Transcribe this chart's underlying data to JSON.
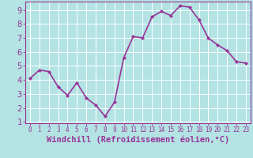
{
  "x": [
    0,
    1,
    2,
    3,
    4,
    5,
    6,
    7,
    8,
    9,
    10,
    11,
    12,
    13,
    14,
    15,
    16,
    17,
    18,
    19,
    20,
    21,
    22,
    23
  ],
  "y": [
    4.1,
    4.7,
    4.6,
    3.5,
    2.9,
    3.8,
    2.7,
    2.2,
    1.4,
    2.4,
    5.6,
    7.1,
    7.0,
    8.5,
    8.9,
    8.6,
    9.3,
    9.2,
    8.3,
    7.0,
    6.5,
    6.1,
    5.3,
    5.2
  ],
  "line_color": "#993399",
  "marker": "D",
  "marker_size": 2.0,
  "bg_color": "#b3e3e3",
  "grid_color": "#ffffff",
  "xlabel": "Windchill (Refroidissement éolien,°C)",
  "xlabel_color": "#993399",
  "tick_color": "#993399",
  "ylim": [
    0.9,
    9.6
  ],
  "xlim": [
    -0.5,
    23.5
  ],
  "yticks": [
    1,
    2,
    3,
    4,
    5,
    6,
    7,
    8,
    9
  ],
  "xticks": [
    0,
    1,
    2,
    3,
    4,
    5,
    6,
    7,
    8,
    9,
    10,
    11,
    12,
    13,
    14,
    15,
    16,
    17,
    18,
    19,
    20,
    21,
    22,
    23
  ],
  "xtick_labels": [
    "0",
    "1",
    "2",
    "3",
    "4",
    "5",
    "6",
    "7",
    "8",
    "9",
    "10",
    "11",
    "12",
    "13",
    "14",
    "15",
    "16",
    "17",
    "18",
    "19",
    "20",
    "21",
    "22",
    "23"
  ],
  "spine_color": "#993399",
  "linewidth": 1.2,
  "font_size": 5.5,
  "ylabel_font_size": 7.5,
  "xlabel_font_size": 7.5
}
